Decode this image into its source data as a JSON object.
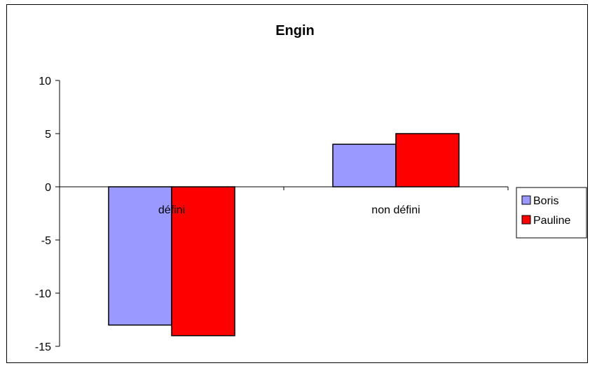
{
  "chart_data": {
    "type": "bar",
    "title": "Engin",
    "categories": [
      "défini",
      "non défini"
    ],
    "series": [
      {
        "name": "Boris",
        "values": [
          -13,
          4
        ],
        "color": "#9999ff"
      },
      {
        "name": "Pauline",
        "values": [
          -14,
          5
        ],
        "color": "#ff0000"
      }
    ],
    "ylim": [
      -15,
      10
    ],
    "yticks": [
      "10",
      "5",
      "0",
      "-5",
      "-10",
      "-15"
    ],
    "xlabel": "",
    "ylabel": "",
    "grid": false,
    "legend": "right"
  }
}
